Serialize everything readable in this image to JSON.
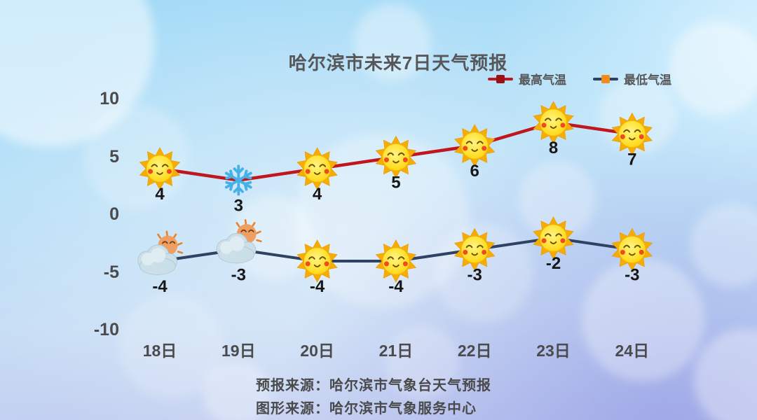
{
  "title": "哈尔滨市未来7日天气预报",
  "chart_data": {
    "type": "line",
    "categories": [
      "18日",
      "19日",
      "20日",
      "21日",
      "22日",
      "23日",
      "24日"
    ],
    "series": [
      {
        "name": "最高气温",
        "values": [
          4,
          3,
          4,
          5,
          6,
          8,
          7
        ],
        "color": "#c0161d",
        "legend_marker_color": "#9c1016",
        "icons": [
          "sun",
          "snowflake",
          "sun",
          "sun",
          "sun",
          "sun",
          "sun"
        ]
      },
      {
        "name": "最低气温",
        "values": [
          -4,
          -3,
          -4,
          -4,
          -3,
          -2,
          -3
        ],
        "color": "#2f4263",
        "legend_marker_color": "#f08c1e",
        "icons": [
          "sun-cloud",
          "sun-cloud",
          "sun",
          "sun",
          "sun",
          "sun",
          "sun"
        ]
      }
    ],
    "yticks": [
      10,
      5,
      0,
      -5,
      -10
    ],
    "ylim": [
      -12,
      12
    ],
    "grid": false,
    "legend_position": "top-right",
    "icon_legend": {
      "sun": "晴 (sunny)",
      "snowflake": "雪 (snow)",
      "sun-cloud": "多云 (partly cloudy)"
    }
  },
  "footer": {
    "line1": "预报来源：哈尔滨市气象台天气预报",
    "line2": "图形来源：哈尔滨市气象服务中心"
  }
}
